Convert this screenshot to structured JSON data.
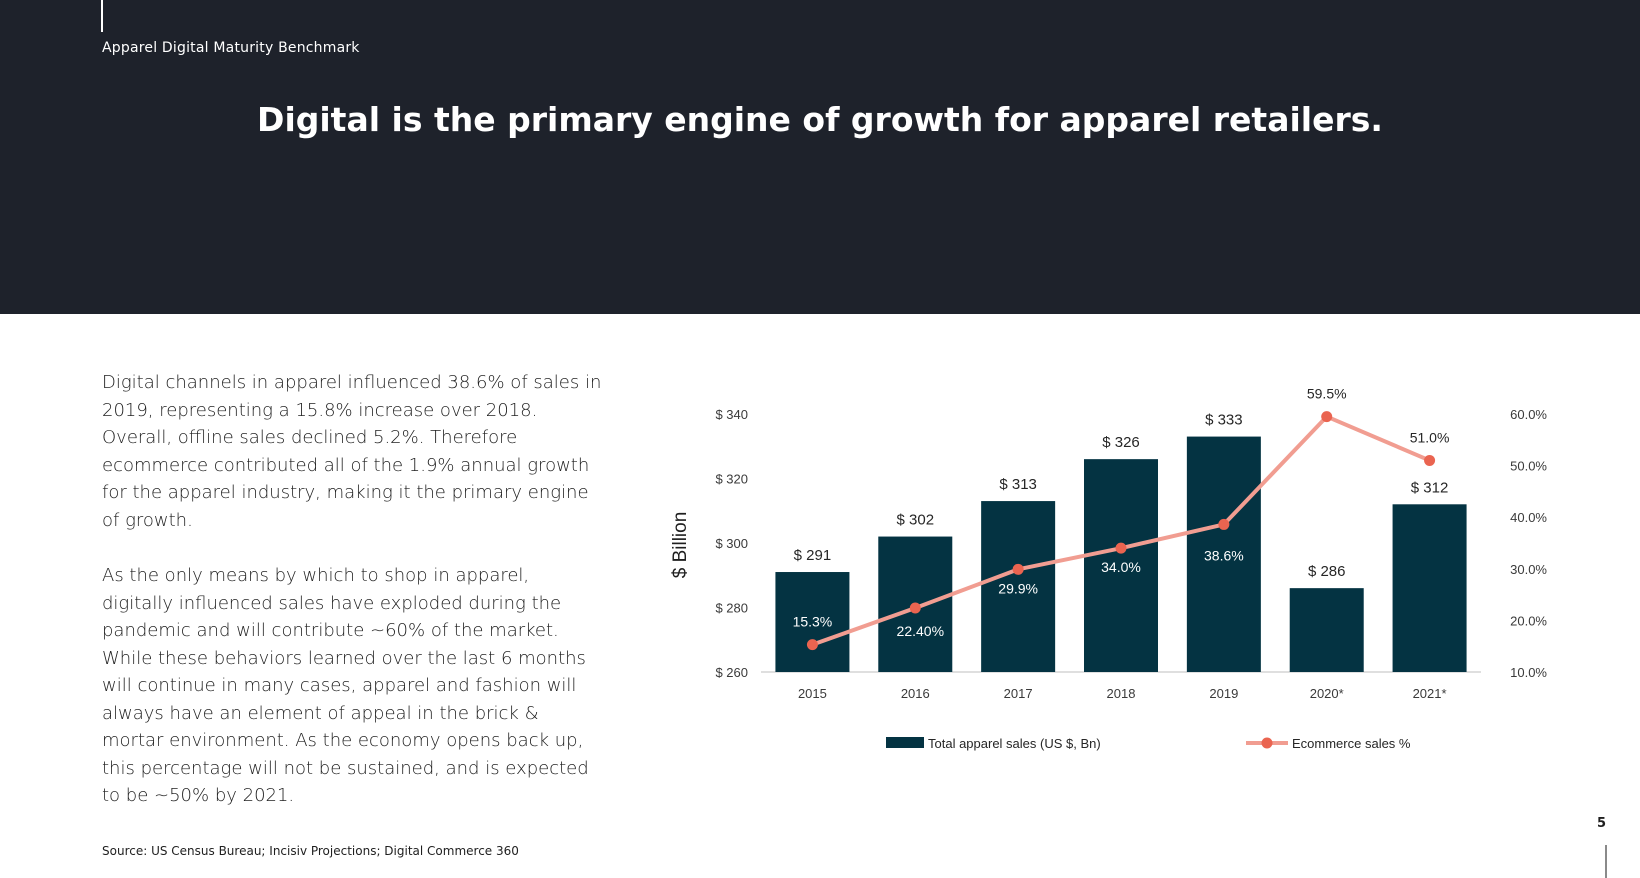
{
  "header": {
    "subtitle": "Apparel Digital Maturity Benchmark",
    "headline": "Digital is the primary engine of growth for apparel retailers."
  },
  "body": {
    "paragraph_1": "Digital channels in apparel influenced 38.6% of sales in 2019, representing a 15.8% increase over 2018. Overall, offline sales declined 5.2%. Therefore ecommerce contributed all of the 1.9% annual growth for the apparel industry, making it the primary engine of growth.",
    "paragraph_2": "As the only means by which to shop in apparel, digitally influenced sales have exploded during the pandemic and will contribute ~60% of the market. While these behaviors learned over the last 6 months will continue in many cases, apparel and fashion will always have an element of appeal in the brick & mortar environment. As the economy opens back up, this percentage will not be sustained, and is expected to be ~50% by 2021."
  },
  "footer": {
    "source": "Source: US Census Bureau; Incisiv Projections; Digital Commerce 360",
    "page_number": "5"
  },
  "colors": {
    "header_bg": "#1e222b",
    "bar": "#043342",
    "line": "#f19d91",
    "marker": "#ea6450"
  },
  "chart_data": {
    "type": "bar",
    "categories": [
      "2015",
      "2016",
      "2017",
      "2018",
      "2019",
      "2020*",
      "2021*"
    ],
    "series": [
      {
        "name": "Total apparel sales (US $, Bn)",
        "type": "bar",
        "axis": "left",
        "values": [
          291,
          302,
          313,
          326,
          333,
          286,
          312
        ],
        "labels": [
          "$ 291",
          "$ 302",
          "$ 313",
          "$ 326",
          "$ 333",
          "$ 286",
          "$ 312"
        ]
      },
      {
        "name": "Ecommerce sales %",
        "type": "line",
        "axis": "right",
        "values": [
          15.3,
          22.4,
          29.9,
          34.0,
          38.6,
          59.5,
          51.0
        ],
        "labels": [
          "15.3%",
          "22.40%",
          "29.9%",
          "34.0%",
          "38.6%",
          "59.5%",
          "51.0%"
        ]
      }
    ],
    "ylabel": "$ Billion",
    "y_left": {
      "lim": [
        260,
        340
      ],
      "ticks": [
        260,
        280,
        300,
        320,
        340
      ],
      "tick_labels": [
        "$ 260",
        "$ 280",
        "$ 300",
        "$ 320",
        "$ 340"
      ]
    },
    "y_right": {
      "lim": [
        10,
        60
      ],
      "ticks": [
        10,
        20,
        30,
        40,
        50,
        60
      ],
      "tick_labels": [
        "10.0%",
        "20.0%",
        "30.0%",
        "40.0%",
        "50.0%",
        "60.0%"
      ]
    },
    "grid": false,
    "legend_position": "bottom"
  }
}
